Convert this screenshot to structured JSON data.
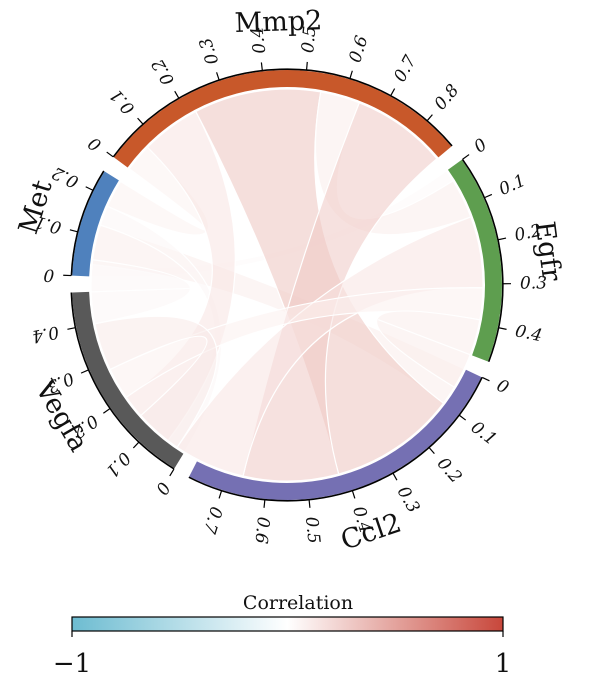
{
  "chart_data": {
    "type": "chord",
    "sectors": [
      {
        "name": "Met",
        "total": 0.25,
        "color": "#4f81bd",
        "ticks": [
          "0",
          "0.1",
          "0.2"
        ]
      },
      {
        "name": "Mmp2",
        "total": 0.88,
        "color": "#c8582a",
        "ticks": [
          "0",
          "0.1",
          "0.2",
          "0.3",
          "0.4",
          "0.5",
          "0.6",
          "0.7",
          "0.8"
        ]
      },
      {
        "name": "Egfr",
        "total": 0.48,
        "color": "#5e9e4f",
        "ticks": [
          "0",
          "0.1",
          "0.2",
          "0.3",
          "0.4"
        ]
      },
      {
        "name": "Ccl2",
        "total": 0.78,
        "color": "#7570b3",
        "ticks": [
          "0",
          "0.1",
          "0.2",
          "0.3",
          "0.4",
          "0.5",
          "0.6",
          "0.7"
        ]
      },
      {
        "name": "Vegfa",
        "total": 0.48,
        "color": "#595959",
        "ticks": [
          "0",
          "0.1",
          "0.2",
          "0.3",
          "0.4"
        ]
      }
    ],
    "links": [
      {
        "from": "Met",
        "to": "Egfr",
        "value": 0.03,
        "correlation": 0.03
      },
      {
        "from": "Met",
        "to": "Ccl2",
        "value": 0.1,
        "correlation": 0.1
      },
      {
        "from": "Met",
        "to": "Vegfa",
        "value": 0.05,
        "correlation": 0.05
      },
      {
        "from": "Met",
        "to": "Mmp2",
        "value": 0.07,
        "correlation": 0.07
      },
      {
        "from": "Mmp2",
        "to": "Vegfa",
        "value": 0.15,
        "correlation": 0.15
      },
      {
        "from": "Mmp2",
        "to": "Ccl2",
        "value": 0.32,
        "correlation": 0.32
      },
      {
        "from": "Mmp2",
        "to": "Egfr",
        "value": 0.1,
        "correlation": 0.1
      },
      {
        "from": "Mmp2",
        "to": "Ccl2",
        "value": 0.24,
        "correlation": 0.3
      },
      {
        "from": "Egfr",
        "to": "Ccl2",
        "value": 0.18,
        "correlation": 0.15
      },
      {
        "from": "Egfr",
        "to": "Vegfa",
        "value": 0.08,
        "correlation": 0.08
      },
      {
        "from": "Egfr",
        "to": "Egfr",
        "value": 0.09,
        "correlation": 0.1
      },
      {
        "from": "Ccl2",
        "to": "Vegfa",
        "value": 0.12,
        "correlation": 0.12
      },
      {
        "from": "Vegfa",
        "to": "Vegfa",
        "value": 0.08,
        "correlation": 0.05
      }
    ],
    "legend": {
      "title": "Correlation",
      "min_label": "−1",
      "max_label": "1",
      "min": -1,
      "max": 1,
      "colors": [
        "#6dbcd1",
        "#ffffff",
        "#c8473b"
      ]
    }
  }
}
